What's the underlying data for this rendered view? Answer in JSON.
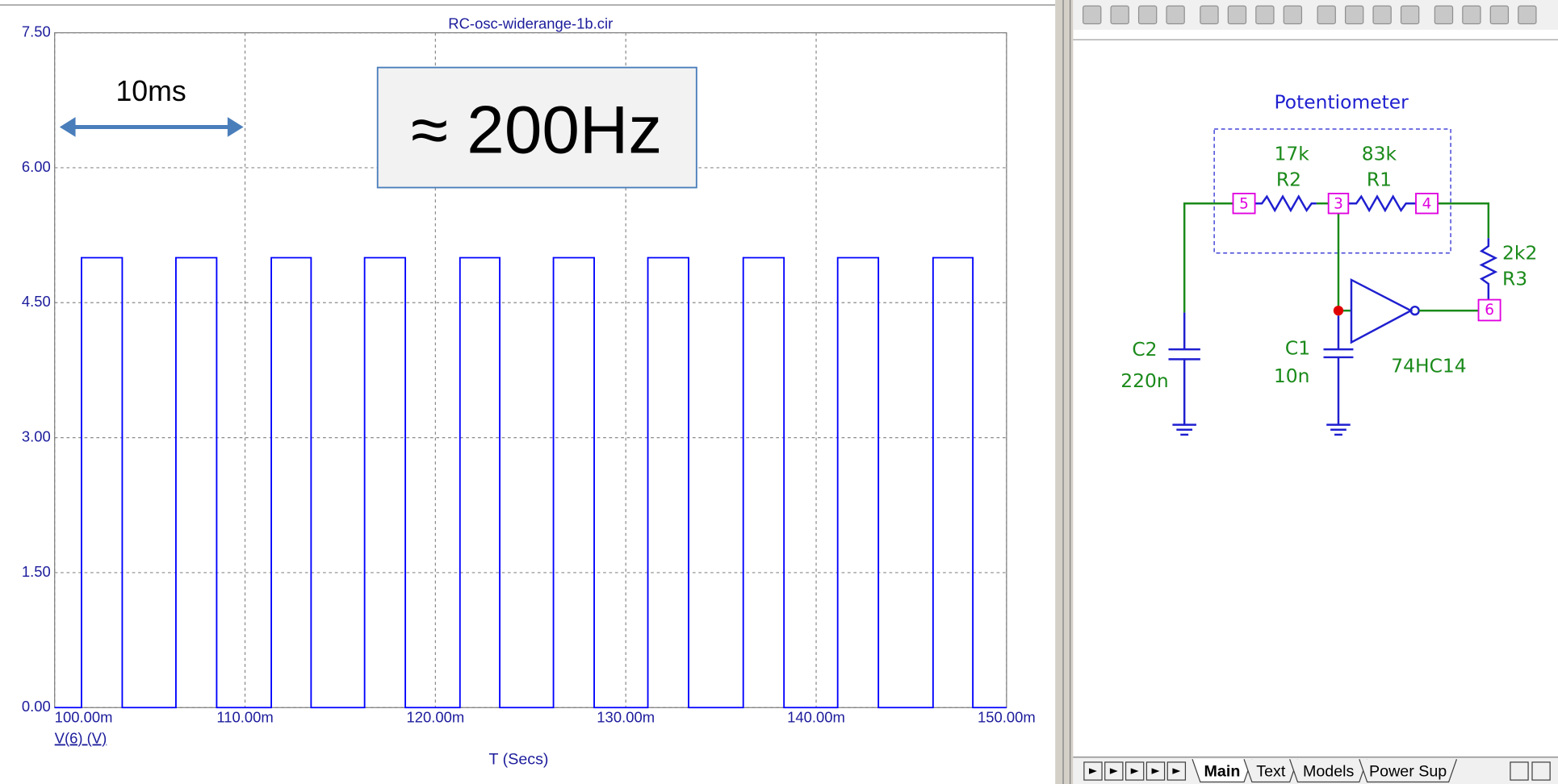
{
  "chart_data": {
    "type": "line",
    "title": "RC-osc-widerange-1b.cir",
    "xlabel": "T (Secs)",
    "x": [
      0.1,
      0.10141,
      0.10141,
      0.10355,
      0.10355,
      0.10637,
      0.10637,
      0.10851,
      0.10851,
      0.11138,
      0.11138,
      0.11347,
      0.11347,
      0.11628,
      0.11628,
      0.11842,
      0.11842,
      0.12129,
      0.12129,
      0.12338,
      0.12338,
      0.1262,
      0.1262,
      0.12834,
      0.12834,
      0.13116,
      0.13116,
      0.1333,
      0.1333,
      0.13617,
      0.13617,
      0.13831,
      0.13831,
      0.14113,
      0.14113,
      0.14327,
      0.14327,
      0.14614,
      0.14614,
      0.14823,
      0.14823,
      0.15
    ],
    "series": [
      {
        "name": "V(6) (V)",
        "color": "#0000ff",
        "values": [
          0,
          0,
          5,
          5,
          0,
          0,
          5,
          5,
          0,
          0,
          5,
          5,
          0,
          0,
          5,
          5,
          0,
          0,
          5,
          5,
          0,
          0,
          5,
          5,
          0,
          0,
          5,
          5,
          0,
          0,
          5,
          5,
          0,
          0,
          5,
          5,
          0,
          0,
          5,
          5,
          0,
          0
        ]
      }
    ],
    "xlim": [
      0.1,
      0.15
    ],
    "xticks": [
      {
        "value": 0.1,
        "label": "100.00m"
      },
      {
        "value": 0.11,
        "label": "110.00m"
      },
      {
        "value": 0.12,
        "label": "120.00m"
      },
      {
        "value": 0.13,
        "label": "130.00m"
      },
      {
        "value": 0.14,
        "label": "140.00m"
      },
      {
        "value": 0.15,
        "label": "150.00m"
      }
    ],
    "ylim": [
      0,
      7.5
    ],
    "yticks": [
      {
        "value": 0,
        "label": "0.00"
      },
      {
        "value": 1.5,
        "label": "1.50"
      },
      {
        "value": 3,
        "label": "3.00"
      },
      {
        "value": 4.5,
        "label": "4.50"
      },
      {
        "value": 6,
        "label": "6.00"
      },
      {
        "value": 7.5,
        "label": "7.50"
      }
    ],
    "grid": true,
    "annotations": [
      "10ms",
      "≈ 200Hz"
    ]
  },
  "schematic": {
    "title": "Potentiometer",
    "components": [
      {
        "value": "17k",
        "name": "R2"
      },
      {
        "value": "83k",
        "name": "R1"
      },
      {
        "value": "2k2",
        "name": "R3"
      },
      {
        "name": "C2",
        "value": "220n"
      },
      {
        "name": "C1",
        "value": "10n"
      },
      {
        "name": "74HC14"
      }
    ],
    "nodes": [
      "5",
      "3",
      "4",
      "6"
    ]
  },
  "tabs": [
    "Main",
    "Text",
    "Models",
    "Power Sup"
  ]
}
